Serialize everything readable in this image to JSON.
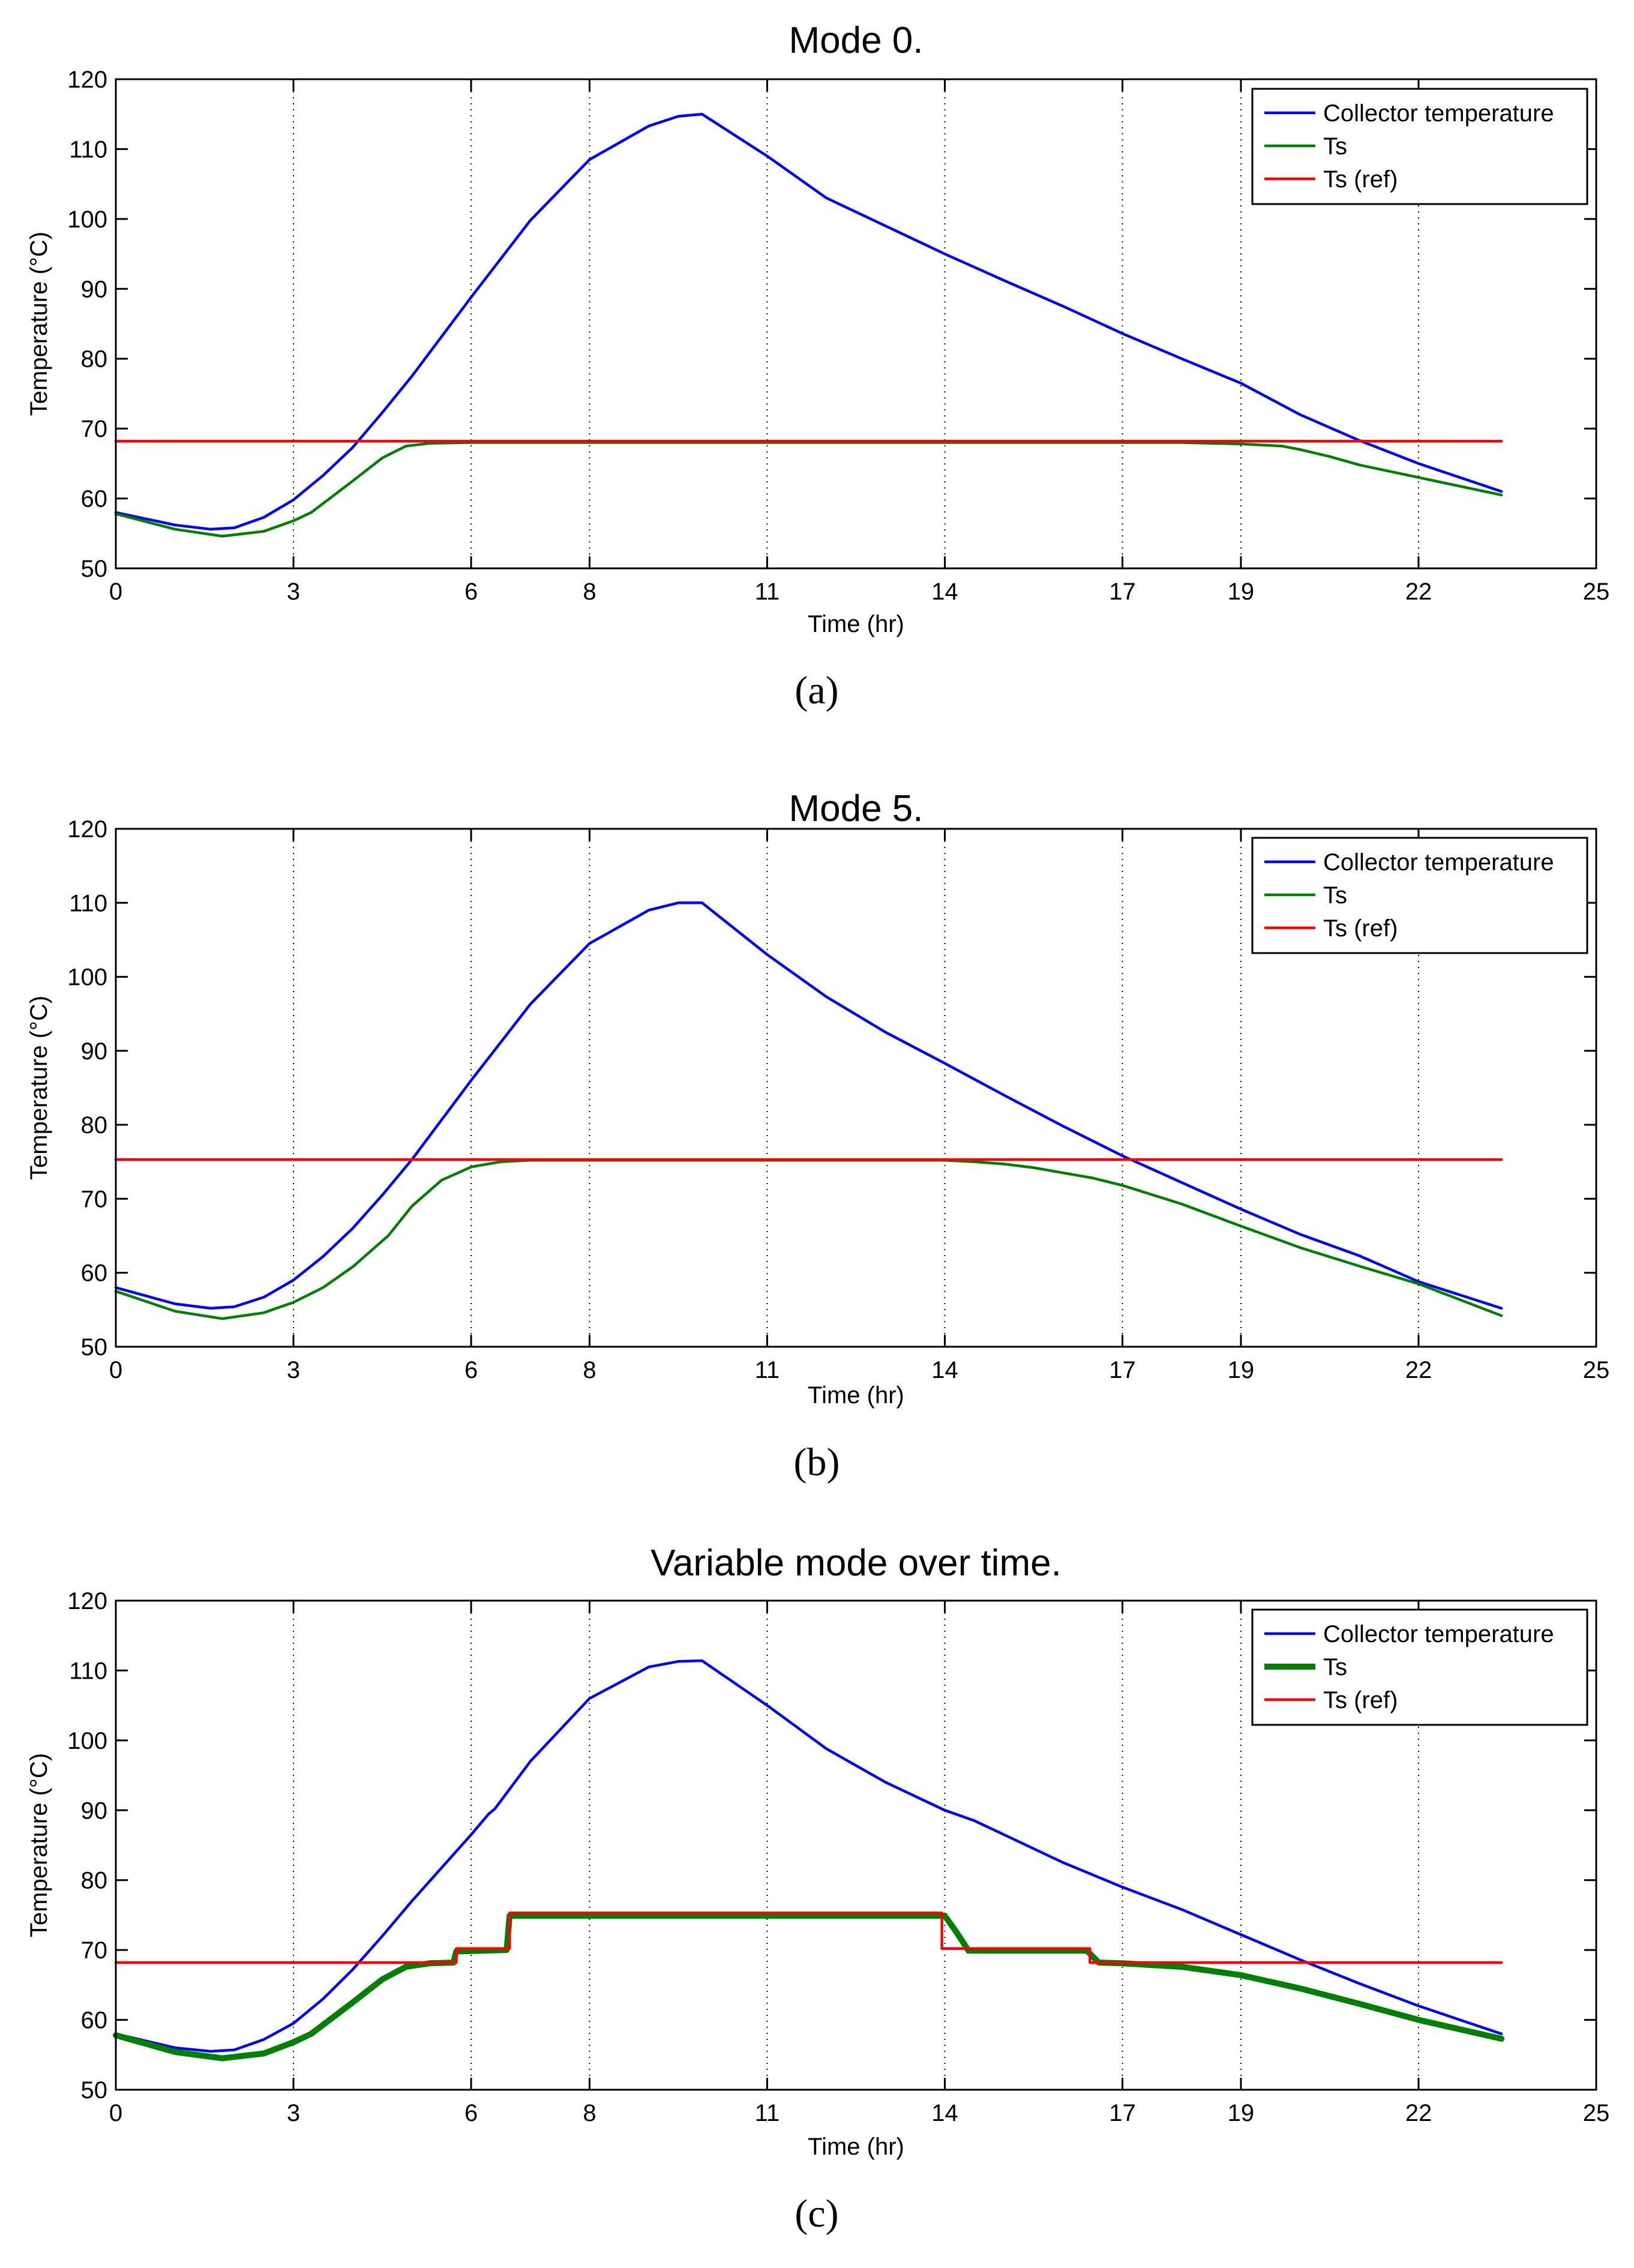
{
  "chart_data": [
    {
      "type": "line",
      "title": "Mode 0.",
      "xlabel": "Time (hr)",
      "ylabel": "Temperature (°C)",
      "caption": "(a)",
      "xlim": [
        0,
        25
      ],
      "ylim": [
        50,
        120
      ],
      "xticks": [
        0,
        3,
        6,
        8,
        11,
        14,
        17,
        19,
        22,
        25
      ],
      "xtick_labels": [
        "0",
        "3",
        "6",
        "8",
        "11",
        "14",
        "17",
        "19",
        "22",
        "25"
      ],
      "yticks": [
        50,
        60,
        70,
        80,
        90,
        100,
        110,
        120
      ],
      "ytick_labels": [
        "50",
        "60",
        "70",
        "80",
        "90",
        "100",
        "110",
        "120"
      ],
      "grid": "vertical dotted",
      "legend_position": "top-right",
      "series": [
        {
          "name": "Collector temperature",
          "color": "#0000ff",
          "width": "thin",
          "x": [
            0,
            1,
            1.6,
            2,
            2.5,
            3,
            3.5,
            4,
            4.5,
            5,
            6,
            7,
            8,
            9,
            9.5,
            9.9,
            11,
            12,
            13,
            14,
            15,
            16,
            17,
            18,
            19,
            20,
            21,
            22,
            23.4
          ],
          "y": [
            58,
            56.2,
            55.6,
            55.8,
            57.3,
            59.8,
            63.3,
            67.3,
            72.3,
            77.5,
            88.8,
            99.8,
            108.5,
            113.3,
            114.7,
            115,
            109,
            103,
            99,
            95,
            91.2,
            87.5,
            83.6,
            80,
            76.5,
            72,
            68.3,
            65,
            61
          ]
        },
        {
          "name": "Ts",
          "color": "#008000",
          "width": "thin",
          "x": [
            0,
            1,
            1.8,
            2.5,
            3,
            3.3,
            4,
            4.5,
            4.9,
            5.3,
            6,
            18,
            19,
            19.7,
            20,
            20.5,
            21,
            22,
            23.4
          ],
          "y": [
            57.8,
            55.6,
            54.6,
            55.3,
            56.8,
            58,
            62.5,
            65.8,
            67.5,
            67.9,
            68,
            68,
            67.8,
            67.5,
            67,
            66,
            64.8,
            63,
            60.5
          ]
        },
        {
          "name": "Ts (ref)",
          "color": "#ff0000",
          "width": "thin",
          "x": [
            0,
            23.4
          ],
          "y": [
            68.2,
            68.2
          ]
        }
      ]
    },
    {
      "type": "line",
      "title": "Mode 5.",
      "xlabel": "Time (hr)",
      "ylabel": "Temperature (°C)",
      "caption": "(b)",
      "xlim": [
        0,
        25
      ],
      "ylim": [
        50,
        120
      ],
      "xticks": [
        0,
        3,
        6,
        8,
        11,
        14,
        17,
        19,
        22,
        25
      ],
      "xtick_labels": [
        "0",
        "3",
        "6",
        "8",
        "11",
        "14",
        "17",
        "19",
        "22",
        "25"
      ],
      "yticks": [
        50,
        60,
        70,
        80,
        90,
        100,
        110,
        120
      ],
      "ytick_labels": [
        "50",
        "60",
        "70",
        "80",
        "90",
        "100",
        "110",
        "120"
      ],
      "grid": "vertical dotted",
      "legend_position": "top-right",
      "series": [
        {
          "name": "Collector temperature",
          "color": "#0000ff",
          "width": "thin",
          "x": [
            0,
            1,
            1.6,
            2,
            2.5,
            3,
            3.5,
            4,
            4.5,
            5,
            6,
            7,
            8,
            9,
            9.5,
            9.9,
            11,
            12,
            13,
            14,
            15,
            16,
            17,
            18,
            19,
            20,
            21,
            22,
            23.4
          ],
          "y": [
            58,
            55.8,
            55.2,
            55.4,
            56.7,
            59,
            62.2,
            66,
            70.5,
            75.3,
            86,
            96.3,
            104.5,
            109,
            110,
            110,
            103,
            97.3,
            92.5,
            88.3,
            84,
            79.8,
            75.8,
            72.2,
            68.6,
            65.2,
            62.3,
            58.8,
            55.2
          ]
        },
        {
          "name": "Ts",
          "color": "#008000",
          "width": "thin",
          "x": [
            0,
            1,
            1.8,
            2.5,
            3,
            3.5,
            4,
            4.6,
            5,
            5.5,
            6,
            6.5,
            7,
            14,
            14.5,
            15,
            15.5,
            16,
            16.5,
            17,
            18,
            19,
            20,
            21,
            22,
            23.4
          ],
          "y": [
            57.5,
            54.8,
            53.8,
            54.6,
            56,
            58,
            60.8,
            65,
            69,
            72.5,
            74.3,
            75,
            75.2,
            75.2,
            75,
            74.7,
            74.2,
            73.5,
            72.8,
            71.8,
            69.3,
            66.3,
            63.4,
            60.9,
            58.5,
            54.2
          ]
        },
        {
          "name": "Ts (ref)",
          "color": "#ff0000",
          "width": "thin",
          "x": [
            0,
            23.4
          ],
          "y": [
            75.3,
            75.3
          ]
        }
      ]
    },
    {
      "type": "line",
      "title": "Variable mode over time.",
      "xlabel": "Time (hr)",
      "ylabel": "Temperature (°C)",
      "caption": "(c)",
      "xlim": [
        0,
        25
      ],
      "ylim": [
        50,
        120
      ],
      "xticks": [
        0,
        3,
        6,
        8,
        11,
        14,
        17,
        19,
        22,
        25
      ],
      "xtick_labels": [
        "0",
        "3",
        "6",
        "8",
        "11",
        "14",
        "17",
        "19",
        "22",
        "25"
      ],
      "yticks": [
        50,
        60,
        70,
        80,
        90,
        100,
        110,
        120
      ],
      "ytick_labels": [
        "50",
        "60",
        "70",
        "80",
        "90",
        "100",
        "110",
        "120"
      ],
      "grid": "vertical dotted",
      "legend_position": "top-right",
      "series": [
        {
          "name": "Collector temperature",
          "color": "#0000ff",
          "width": "thin",
          "x": [
            0,
            1,
            1.6,
            2,
            2.5,
            3,
            3.5,
            4,
            4.5,
            5,
            6,
            6.3,
            6.4,
            7,
            8,
            9,
            9.5,
            9.9,
            11,
            12,
            13,
            14,
            14.5,
            15,
            16,
            17,
            18,
            19,
            20,
            21,
            22,
            23.4
          ],
          "y": [
            58,
            56,
            55.5,
            55.7,
            57.2,
            59.5,
            63,
            67.2,
            72,
            77,
            86.5,
            89.5,
            90.2,
            97,
            106,
            110.5,
            111.3,
            111.4,
            105,
            98.8,
            94,
            90,
            88.5,
            86.5,
            82.5,
            79,
            75.8,
            72.2,
            68.6,
            65.2,
            62,
            58
          ]
        },
        {
          "name": "Ts",
          "color": "#008000",
          "width": "thick",
          "x": [
            0,
            1,
            1.8,
            2.5,
            3,
            3.3,
            4,
            4.5,
            4.9,
            5.3,
            5.7,
            5.75,
            6.6,
            6.65,
            14,
            14.2,
            14.4,
            16.4,
            16.6,
            17,
            18,
            19,
            20,
            21,
            22,
            23.4
          ],
          "y": [
            57.8,
            55.4,
            54.5,
            55.2,
            56.8,
            58,
            62.5,
            65.8,
            67.6,
            68.1,
            68.2,
            69.8,
            70,
            74.9,
            74.9,
            72.5,
            69.9,
            69.9,
            68.2,
            68.1,
            67.6,
            66.4,
            64.5,
            62.3,
            60,
            57.3
          ]
        },
        {
          "name": "Ts (ref)",
          "color": "#ff0000",
          "width": "thin",
          "x": [
            0,
            5.75,
            5.75,
            6.65,
            6.65,
            13.95,
            13.95,
            16.45,
            16.45,
            23.4
          ],
          "y": [
            68.2,
            68.2,
            70.2,
            70.2,
            75.3,
            75.3,
            70.2,
            70.2,
            68.2,
            68.2
          ]
        }
      ]
    }
  ]
}
